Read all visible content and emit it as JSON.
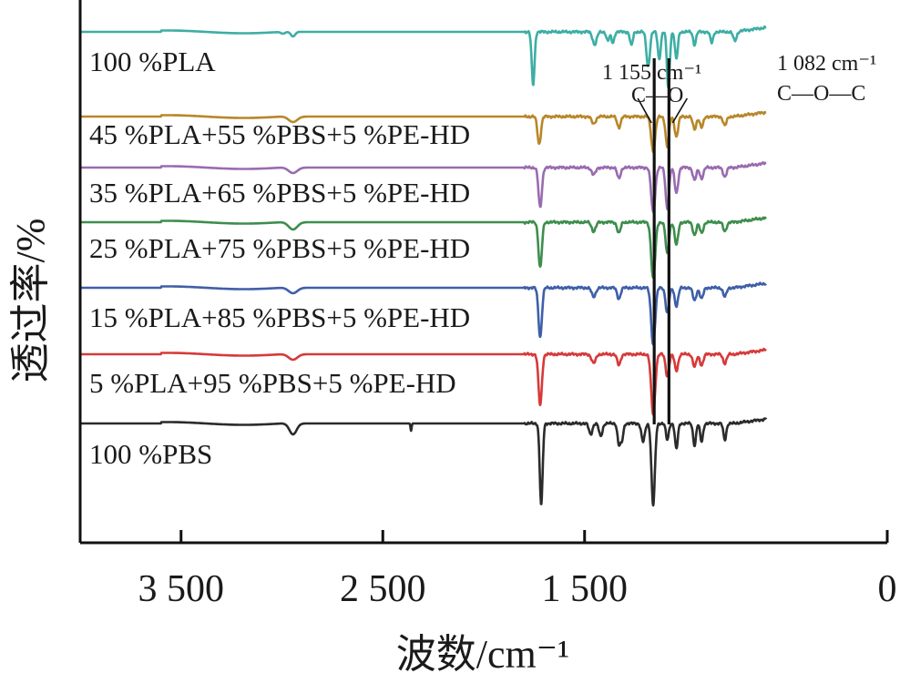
{
  "chart_data": {
    "type": "line",
    "title": "",
    "xlabel": "波数/cm⁻¹",
    "ylabel": "透过率/%",
    "xlim": [
      4000,
      0
    ],
    "x_reversed": true,
    "x_ticks": [
      3500,
      2500,
      1500,
      0
    ],
    "x_tick_labels": [
      "3 500",
      "2 500",
      "1 500",
      "0"
    ],
    "y_ticks": [],
    "grid": false,
    "legend": "none (labels placed above each curve)",
    "series": [
      {
        "name": "100 %PLA",
        "color": "#3DAEA4",
        "offset": 35,
        "peaks": [
          [
            2995,
            2,
            14
          ],
          [
            2945,
            5,
            15
          ],
          [
            1755,
            58,
            10
          ],
          [
            1450,
            14,
            14
          ],
          [
            1385,
            10,
            10
          ],
          [
            1360,
            12,
            10
          ],
          [
            1268,
            15,
            10
          ],
          [
            1185,
            38,
            12
          ],
          [
            1130,
            30,
            10
          ],
          [
            1085,
            62,
            10
          ],
          [
            1045,
            30,
            10
          ],
          [
            955,
            14,
            10
          ],
          [
            870,
            12,
            10
          ],
          [
            755,
            10,
            12
          ]
        ]
      },
      {
        "name": "45 %PLA+55 %PBS+5 %PE-HD",
        "color": "#B8872A",
        "offset": 128,
        "peaks": [
          [
            2945,
            6,
            30
          ],
          [
            1725,
            30,
            12
          ],
          [
            1455,
            8,
            14
          ],
          [
            1330,
            12,
            12
          ],
          [
            1160,
            38,
            14
          ],
          [
            1090,
            33,
            12
          ],
          [
            1045,
            22,
            12
          ],
          [
            955,
            14,
            12
          ],
          [
            920,
            12,
            12
          ],
          [
            805,
            10,
            12
          ]
        ]
      },
      {
        "name": "35 %PLA+65 %PBS+5 %PE-HD",
        "color": "#9A6BB0",
        "offset": 184,
        "peaks": [
          [
            2945,
            6,
            30
          ],
          [
            1720,
            44,
            12
          ],
          [
            1455,
            8,
            14
          ],
          [
            1330,
            12,
            12
          ],
          [
            1160,
            49,
            14
          ],
          [
            1090,
            45,
            12
          ],
          [
            1045,
            28,
            12
          ],
          [
            955,
            14,
            12
          ],
          [
            920,
            12,
            12
          ],
          [
            805,
            10,
            12
          ]
        ]
      },
      {
        "name": "25 %PLA+75 %PBS+5 %PE-HD",
        "color": "#3E8E4E",
        "offset": 244,
        "peaks": [
          [
            2945,
            8,
            30
          ],
          [
            1720,
            50,
            12
          ],
          [
            1455,
            10,
            14
          ],
          [
            1330,
            12,
            12
          ],
          [
            1160,
            62,
            14
          ],
          [
            1090,
            35,
            12
          ],
          [
            1045,
            25,
            12
          ],
          [
            955,
            14,
            12
          ],
          [
            920,
            12,
            12
          ],
          [
            805,
            10,
            12
          ]
        ]
      },
      {
        "name": "15 %PLA+85 %PBS+5 %PE-HD",
        "color": "#3F5FA8",
        "offset": 316,
        "peaks": [
          [
            2945,
            6,
            30
          ],
          [
            1720,
            54,
            12
          ],
          [
            1455,
            10,
            14
          ],
          [
            1330,
            12,
            12
          ],
          [
            1160,
            62,
            14
          ],
          [
            1090,
            28,
            12
          ],
          [
            1045,
            20,
            12
          ],
          [
            955,
            14,
            12
          ],
          [
            920,
            12,
            12
          ],
          [
            805,
            10,
            12
          ]
        ]
      },
      {
        "name": "5 %PLA+95 %PBS+5 %PE-HD",
        "color": "#D63A3A",
        "offset": 389,
        "peaks": [
          [
            2945,
            6,
            30
          ],
          [
            1720,
            56,
            12
          ],
          [
            1455,
            10,
            14
          ],
          [
            1330,
            12,
            12
          ],
          [
            1160,
            66,
            14
          ],
          [
            1090,
            24,
            12
          ],
          [
            1045,
            18,
            12
          ],
          [
            955,
            14,
            12
          ],
          [
            920,
            12,
            12
          ],
          [
            805,
            10,
            12
          ]
        ]
      },
      {
        "name": "100 %PBS",
        "color": "#2B2B2B",
        "offset": 465,
        "peaks": [
          [
            2945,
            12,
            25
          ],
          [
            2360,
            8,
            4
          ],
          [
            1715,
            90,
            10
          ],
          [
            1470,
            12,
            12
          ],
          [
            1420,
            14,
            12
          ],
          [
            1330,
            22,
            10
          ],
          [
            1315,
            18,
            10
          ],
          [
            1210,
            20,
            12
          ],
          [
            1160,
            90,
            12
          ],
          [
            1090,
            18,
            10
          ],
          [
            1045,
            28,
            10
          ],
          [
            955,
            24,
            10
          ],
          [
            920,
            20,
            10
          ],
          [
            805,
            18,
            10
          ]
        ]
      }
    ],
    "annotations": [
      {
        "wavenumber": 1155,
        "label": "1 155 cm⁻¹",
        "group": "C—O"
      },
      {
        "wavenumber": 1082,
        "label": "1 082 cm⁻¹",
        "group": "C—O—C"
      }
    ]
  }
}
